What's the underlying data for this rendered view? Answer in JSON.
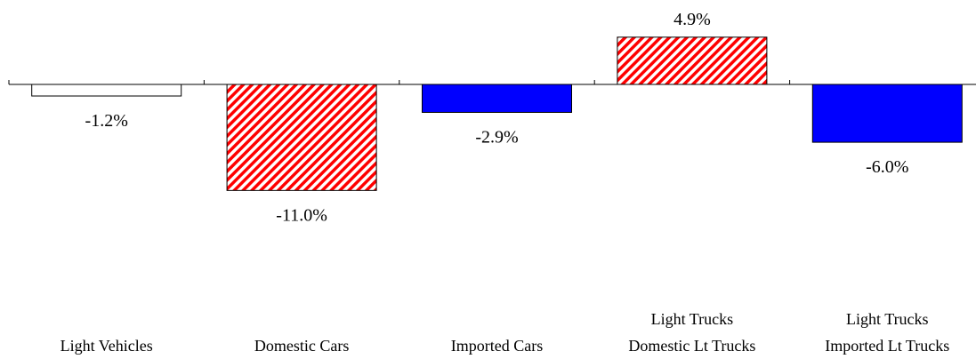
{
  "chart_data": {
    "type": "bar",
    "title": "",
    "xlabel": "",
    "ylabel": "",
    "ylim": [
      -20,
      6
    ],
    "grid": false,
    "legend": "none",
    "categories": [
      [
        "Light Vehicles"
      ],
      [
        "Domestic Cars"
      ],
      [
        "Imported Cars"
      ],
      [
        "Light Trucks",
        "Domestic Lt Trucks"
      ],
      [
        "Light Trucks",
        "Imported Lt Trucks"
      ]
    ],
    "values": [
      -1.2,
      -11.0,
      -2.9,
      4.9,
      -6.0
    ],
    "value_labels": [
      "-1.2%",
      "-11.0%",
      "-2.9%",
      "4.9%",
      "-6.0%"
    ],
    "bar_styles": [
      "white",
      "red-hatch",
      "blue",
      "red-hatch",
      "blue"
    ]
  },
  "colors": {
    "blue": "#0000ff",
    "red": "#ff0000",
    "white": "#ffffff",
    "outline": "#000000"
  }
}
